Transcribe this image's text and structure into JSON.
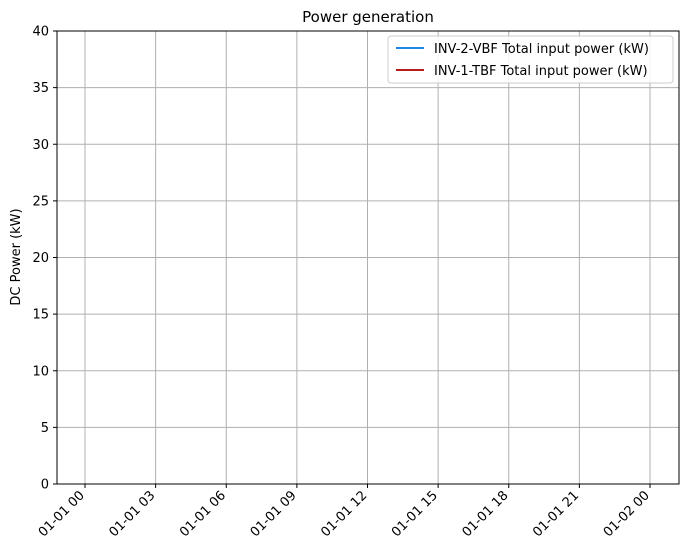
{
  "chart_data": {
    "type": "line",
    "title": "Power generation",
    "xlabel": "",
    "ylabel": "DC Power (kW)",
    "ylim": [
      0,
      40
    ],
    "yticks": [
      0,
      5,
      10,
      15,
      20,
      25,
      30,
      35,
      40
    ],
    "x_ticks": [
      "01-01 00",
      "01-01 03",
      "01-01 06",
      "01-01 09",
      "01-01 12",
      "01-01 15",
      "01-01 18",
      "01-01 21",
      "01-02 00"
    ],
    "grid": true,
    "legend_position": "top-right",
    "series": [
      {
        "name": "INV-2-VBF Total input power (kW)",
        "color": "#1e88e5",
        "values": []
      },
      {
        "name": "INV-1-TBF Total input power (kW)",
        "color": "#b71c1c",
        "values": []
      }
    ]
  }
}
